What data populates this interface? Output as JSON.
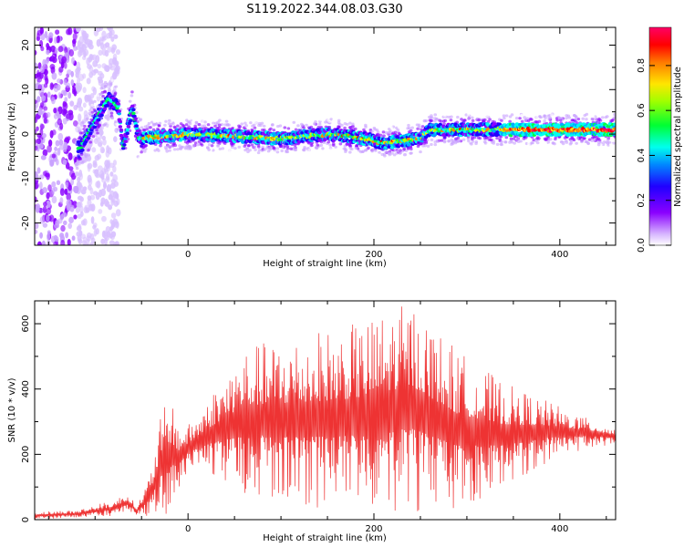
{
  "title": "S119.2022.344.08.03.G30",
  "chart_data": [
    {
      "type": "heatmap",
      "xlabel": "Height of straight line (km)",
      "ylabel": "Frequency (Hz)",
      "xlim": [
        -165,
        460
      ],
      "ylim": [
        -25,
        24
      ],
      "xticks": [
        0,
        200,
        400
      ],
      "yticks": [
        -20,
        -10,
        0,
        10,
        20
      ],
      "colorbar": {
        "label": "Normalized spectral amplitude",
        "range": [
          0.0,
          0.97
        ],
        "ticks": [
          0.0,
          0.2,
          0.4,
          0.6,
          0.8
        ],
        "colormap": [
          "#ffffff",
          "#c8a0ff",
          "#8a00ff",
          "#2200ff",
          "#00aaff",
          "#00ffee",
          "#00ff44",
          "#b0ff00",
          "#ffee00",
          "#ff8800",
          "#ff0000",
          "#ff0066"
        ]
      },
      "frequency_track": [
        {
          "x": -115,
          "freq": -3
        },
        {
          "x": -100,
          "freq": 3
        },
        {
          "x": -85,
          "freq": 8
        },
        {
          "x": -75,
          "freq": 6
        },
        {
          "x": -70,
          "freq": -3
        },
        {
          "x": -60,
          "freq": 6
        },
        {
          "x": -53,
          "freq": -1
        },
        {
          "x": 0,
          "freq": 0
        },
        {
          "x": 100,
          "freq": -1
        },
        {
          "x": 150,
          "freq": 0
        },
        {
          "x": 190,
          "freq": -1
        },
        {
          "x": 210,
          "freq": -2
        },
        {
          "x": 250,
          "freq": -1
        },
        {
          "x": 260,
          "freq": 1
        },
        {
          "x": 300,
          "freq": 1
        },
        {
          "x": 360,
          "freq": 1
        },
        {
          "x": 460,
          "freq": 1
        }
      ]
    },
    {
      "type": "line",
      "xlabel": "Height of straight line (km)",
      "ylabel": "SNR (10 * v/v)",
      "xlim": [
        -165,
        460
      ],
      "ylim": [
        0,
        670
      ],
      "xticks": [
        0,
        200,
        400
      ],
      "yticks": [
        0,
        200,
        400,
        600
      ],
      "color": "#ee3333",
      "envelope": [
        {
          "x": -165,
          "low": 0,
          "high": 25
        },
        {
          "x": -120,
          "low": 5,
          "high": 30
        },
        {
          "x": -80,
          "low": 10,
          "high": 60
        },
        {
          "x": -65,
          "low": 20,
          "high": 85
        },
        {
          "x": -55,
          "low": 15,
          "high": 40
        },
        {
          "x": -40,
          "low": 5,
          "high": 150
        },
        {
          "x": -30,
          "low": 10,
          "high": 310
        },
        {
          "x": -20,
          "low": 20,
          "high": 385
        },
        {
          "x": -10,
          "low": 80,
          "high": 300
        },
        {
          "x": 0,
          "low": 150,
          "high": 290
        },
        {
          "x": 25,
          "low": 130,
          "high": 390
        },
        {
          "x": 60,
          "low": 80,
          "high": 530
        },
        {
          "x": 120,
          "low": 40,
          "high": 570
        },
        {
          "x": 180,
          "low": 30,
          "high": 600
        },
        {
          "x": 240,
          "low": 20,
          "high": 670
        },
        {
          "x": 290,
          "low": 30,
          "high": 520
        },
        {
          "x": 340,
          "low": 100,
          "high": 420
        },
        {
          "x": 390,
          "low": 180,
          "high": 360
        },
        {
          "x": 430,
          "low": 220,
          "high": 310
        },
        {
          "x": 460,
          "low": 230,
          "high": 280
        }
      ]
    }
  ]
}
